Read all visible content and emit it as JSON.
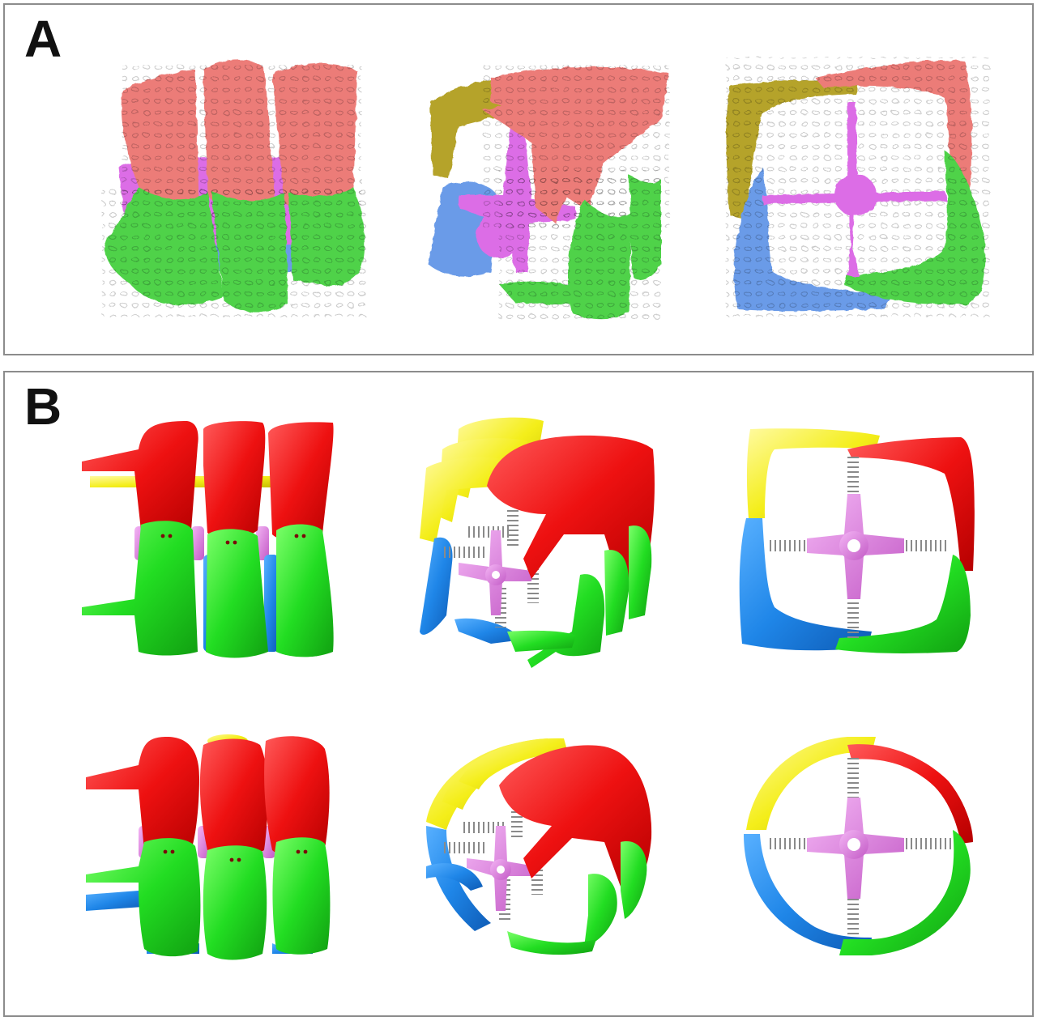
{
  "panels": [
    {
      "label": "A",
      "style": "organic-bone-render"
    },
    {
      "label": "B",
      "style": "mechanical-model-render"
    }
  ],
  "palette": {
    "a_red": "#ec7b78",
    "a_green": "#4fd24a",
    "a_blue": "#6a9be8",
    "a_olive": "#b5a32a",
    "a_purple": "#dc6de6",
    "b_red": "#ee1111",
    "b_green": "#22dd22",
    "b_blue": "#1f86e8",
    "b_yellow": "#f4ee1a",
    "b_pink": "#e47ee6",
    "spring": "#9a9a9a"
  },
  "views": [
    "side",
    "oblique",
    "end"
  ],
  "rows_b": [
    "cube-configuration",
    "cylinder-configuration"
  ]
}
